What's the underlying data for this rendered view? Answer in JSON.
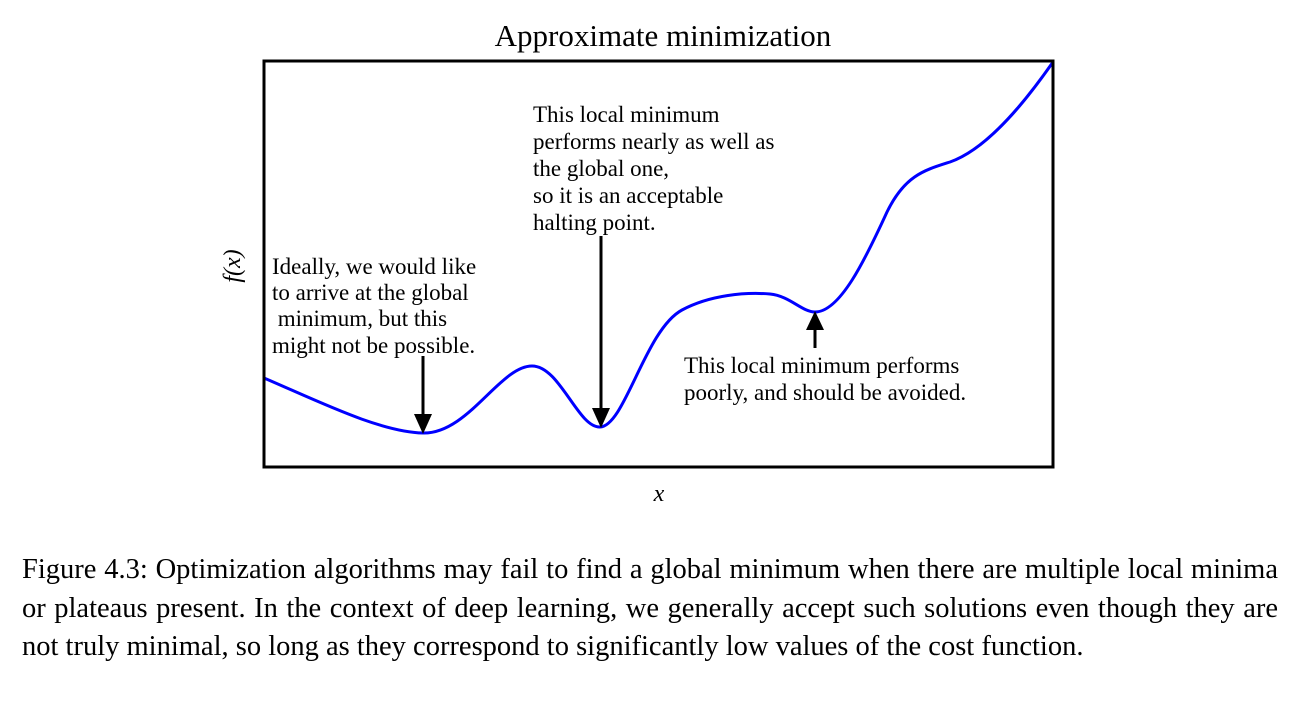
{
  "figure": {
    "title": "Approximate minimization",
    "xlabel": "x",
    "ylabel": "f(x)",
    "curve_color": "#0000ff",
    "annotations": {
      "global_minimum": [
        "Ideally, we would like",
        "to arrive at the global",
        " minimum, but this",
        "might not be possible."
      ],
      "good_local_minimum": [
        "This local minimum",
        "performs nearly as well as",
        "the global one,",
        "so it is an acceptable",
        "halting point."
      ],
      "poor_local_minimum": [
        "This local minimum performs",
        "poorly, and should be avoided."
      ]
    }
  },
  "caption": "Figure 4.3: Optimization algorithms may fail to find a global minimum when there are multiple local minima or plateaus present. In the context of deep learning, we generally accept such solutions even though they are not truly minimal, so long as they correspond to significantly low values of the cost function."
}
